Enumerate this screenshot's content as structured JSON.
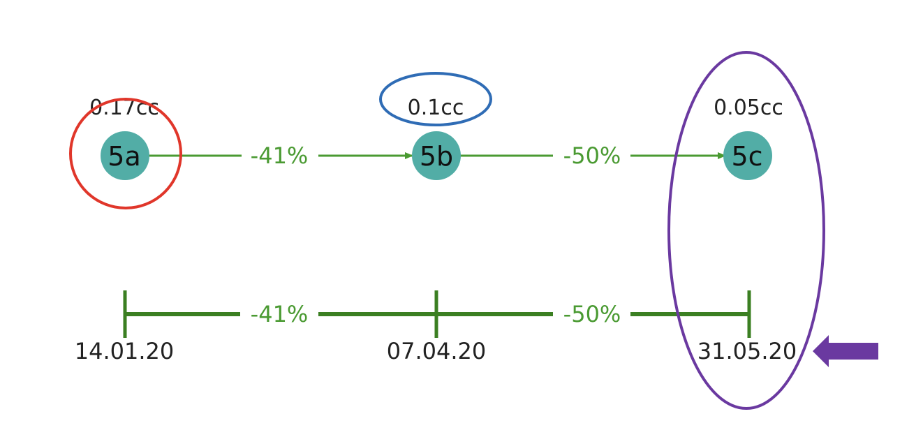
{
  "nodes": [
    {
      "id": "5a",
      "label": "5a",
      "volume": "0.17cc"
    },
    {
      "id": "5b",
      "label": "5b",
      "volume": "0.1cc"
    },
    {
      "id": "5c",
      "label": "5c",
      "volume": "0.05cc"
    }
  ],
  "transitions": [
    {
      "from": "5a",
      "to": "5b",
      "change": "-41%"
    },
    {
      "from": "5b",
      "to": "5c",
      "change": "-50%"
    }
  ],
  "timeline": {
    "dates": [
      "14.01.20",
      "07.04.20",
      "31.05.20"
    ],
    "changes": [
      "-41%",
      "-50%"
    ]
  },
  "colors": {
    "node_fill": "#52ada6",
    "arrow_green": "#4a9a32",
    "timeline_green": "#3b7f22",
    "highlight_red": "#e0362a",
    "highlight_blue": "#2f6cb5",
    "highlight_purple": "#6a39a0",
    "text_dark": "#222222"
  },
  "annotations": [
    {
      "shape": "circle",
      "target": "node-5a",
      "color": "red"
    },
    {
      "shape": "ellipse",
      "target": "volume-5b",
      "color": "blue"
    },
    {
      "shape": "ellipse",
      "target": "column-5c",
      "color": "purple"
    },
    {
      "shape": "arrow",
      "target": "date-31.05.20",
      "color": "purple",
      "direction": "left"
    }
  ]
}
